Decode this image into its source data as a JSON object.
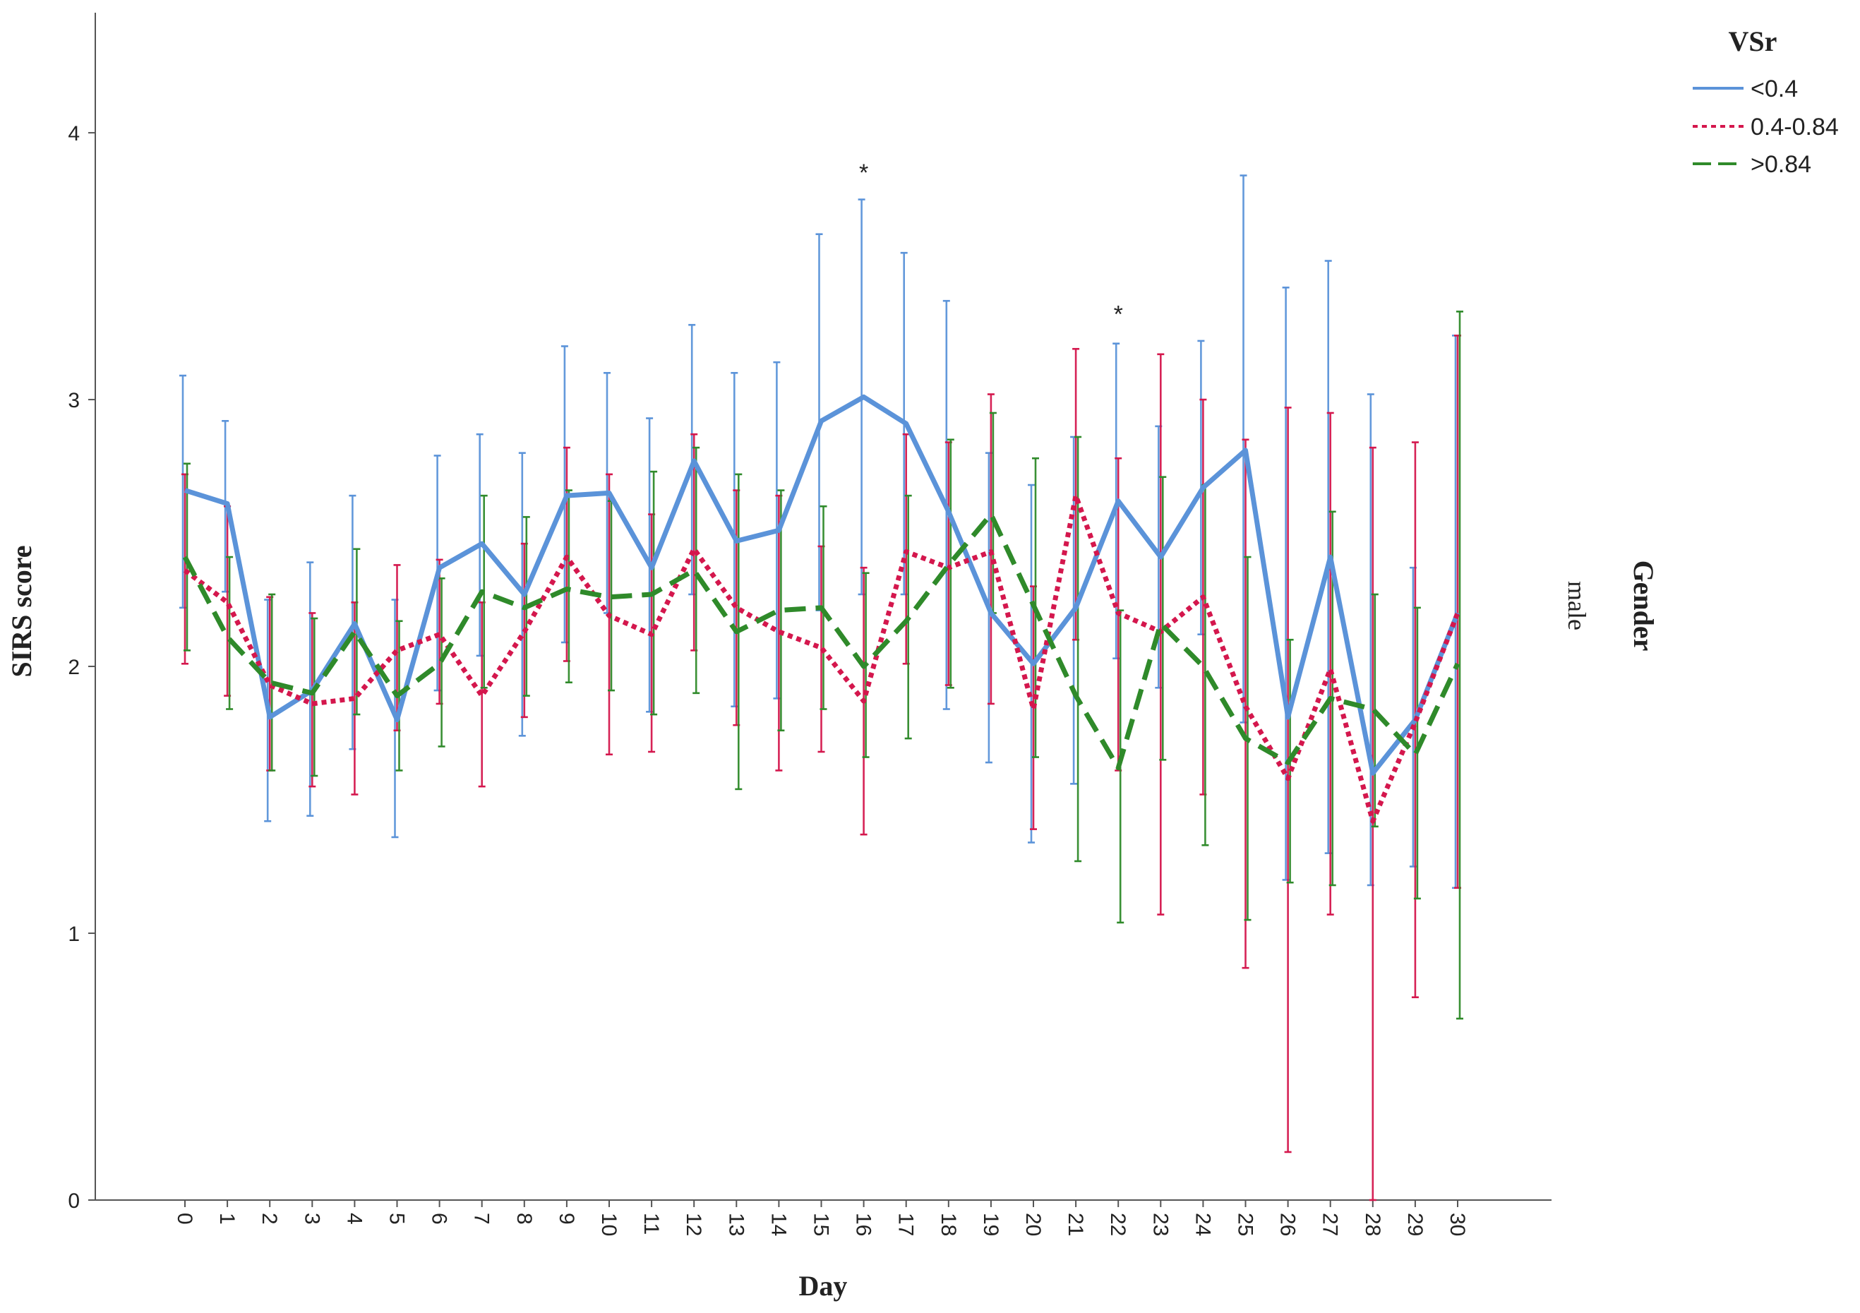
{
  "chart_data": {
    "type": "line",
    "xlabel": "Day",
    "ylabel": "SIRS score",
    "ylim": [
      0,
      4.45
    ],
    "yticks": [
      0,
      1,
      2,
      3,
      4
    ],
    "categories": [
      "0",
      "1",
      "2",
      "3",
      "4",
      "5",
      "6",
      "7",
      "8",
      "9",
      "10",
      "11",
      "12",
      "13",
      "14",
      "15",
      "16",
      "17",
      "18",
      "19",
      "20",
      "21",
      "22",
      "23",
      "24",
      "25",
      "26",
      "27",
      "28",
      "29",
      "30"
    ],
    "legend": {
      "title": "VSr",
      "placement": "top-right"
    },
    "panel_label": {
      "title": "Gender",
      "value": "male"
    },
    "significance": [
      {
        "day": "16",
        "y": 3.82,
        "label": "*"
      },
      {
        "day": "22",
        "y": 3.29,
        "label": "*"
      }
    ],
    "series": [
      {
        "name": "<0.4",
        "color": "#5b93d9",
        "style": "solid",
        "values": [
          2.66,
          2.61,
          1.81,
          1.91,
          2.16,
          1.8,
          2.37,
          2.46,
          2.27,
          2.64,
          2.65,
          2.37,
          2.77,
          2.47,
          2.51,
          2.92,
          3.01,
          2.91,
          2.58,
          2.2,
          2.01,
          2.22,
          2.62,
          2.41,
          2.67,
          2.81,
          1.81,
          2.41,
          1.6,
          1.8,
          2.2
        ],
        "upper": [
          3.09,
          2.92,
          2.25,
          2.39,
          2.64,
          2.25,
          2.79,
          2.87,
          2.8,
          3.2,
          3.1,
          2.93,
          3.28,
          3.1,
          3.14,
          3.62,
          3.75,
          3.55,
          3.37,
          2.8,
          2.68,
          2.86,
          3.21,
          2.9,
          3.22,
          3.84,
          3.42,
          3.52,
          3.02,
          2.37,
          3.24
        ],
        "lower": [
          2.22,
          2.28,
          1.42,
          1.44,
          1.69,
          1.36,
          1.91,
          2.04,
          1.74,
          2.09,
          2.2,
          1.83,
          2.27,
          1.85,
          1.88,
          2.21,
          2.27,
          2.27,
          1.84,
          1.64,
          1.34,
          1.56,
          2.03,
          1.92,
          2.12,
          1.79,
          1.2,
          1.3,
          1.18,
          1.25,
          1.17
        ]
      },
      {
        "name": "0.4-0.84",
        "color": "#d4174d",
        "style": "dotted",
        "values": [
          2.36,
          2.24,
          1.93,
          1.86,
          1.88,
          2.06,
          2.12,
          1.89,
          2.13,
          2.41,
          2.19,
          2.12,
          2.44,
          2.22,
          2.13,
          2.07,
          1.87,
          2.43,
          2.37,
          2.43,
          1.84,
          2.64,
          2.2,
          2.13,
          2.26,
          1.85,
          1.58,
          1.99,
          1.42,
          1.79,
          2.2
        ],
        "upper": [
          2.72,
          2.6,
          2.26,
          2.2,
          2.24,
          2.38,
          2.4,
          2.24,
          2.46,
          2.82,
          2.72,
          2.57,
          2.87,
          2.66,
          2.64,
          2.45,
          2.37,
          2.87,
          2.84,
          3.02,
          2.3,
          3.19,
          2.78,
          3.17,
          3.0,
          2.85,
          2.97,
          2.95,
          2.82,
          2.84,
          3.24
        ],
        "lower": [
          2.01,
          1.89,
          1.61,
          1.55,
          1.52,
          1.76,
          1.86,
          1.55,
          1.81,
          2.02,
          1.67,
          1.68,
          2.06,
          1.78,
          1.61,
          1.68,
          1.37,
          2.01,
          1.93,
          1.86,
          1.39,
          2.1,
          1.61,
          1.07,
          1.52,
          0.87,
          0.18,
          1.07,
          0.0,
          0.76,
          1.17
        ]
      },
      {
        "name": ">0.84",
        "color": "#2f8a2a",
        "style": "dashed",
        "values": [
          2.41,
          2.11,
          1.94,
          1.9,
          2.13,
          1.89,
          2.01,
          2.28,
          2.22,
          2.29,
          2.26,
          2.27,
          2.36,
          2.13,
          2.21,
          2.22,
          2.0,
          2.17,
          2.38,
          2.57,
          2.23,
          1.89,
          1.62,
          2.16,
          2.0,
          1.73,
          1.64,
          1.88,
          1.84,
          1.67,
          2.01
        ],
        "upper": [
          2.76,
          2.41,
          2.27,
          2.18,
          2.44,
          2.17,
          2.33,
          2.64,
          2.56,
          2.66,
          2.62,
          2.73,
          2.82,
          2.72,
          2.66,
          2.6,
          2.35,
          2.64,
          2.85,
          2.95,
          2.78,
          2.86,
          2.21,
          2.71,
          2.68,
          2.41,
          2.1,
          2.58,
          2.27,
          2.22,
          3.33
        ],
        "lower": [
          2.06,
          1.84,
          1.61,
          1.59,
          1.82,
          1.61,
          1.7,
          1.92,
          1.89,
          1.94,
          1.91,
          1.82,
          1.9,
          1.54,
          1.76,
          1.84,
          1.66,
          1.73,
          1.92,
          2.2,
          1.66,
          1.27,
          1.04,
          1.65,
          1.33,
          1.05,
          1.19,
          1.18,
          1.4,
          1.13,
          0.68
        ]
      }
    ]
  }
}
